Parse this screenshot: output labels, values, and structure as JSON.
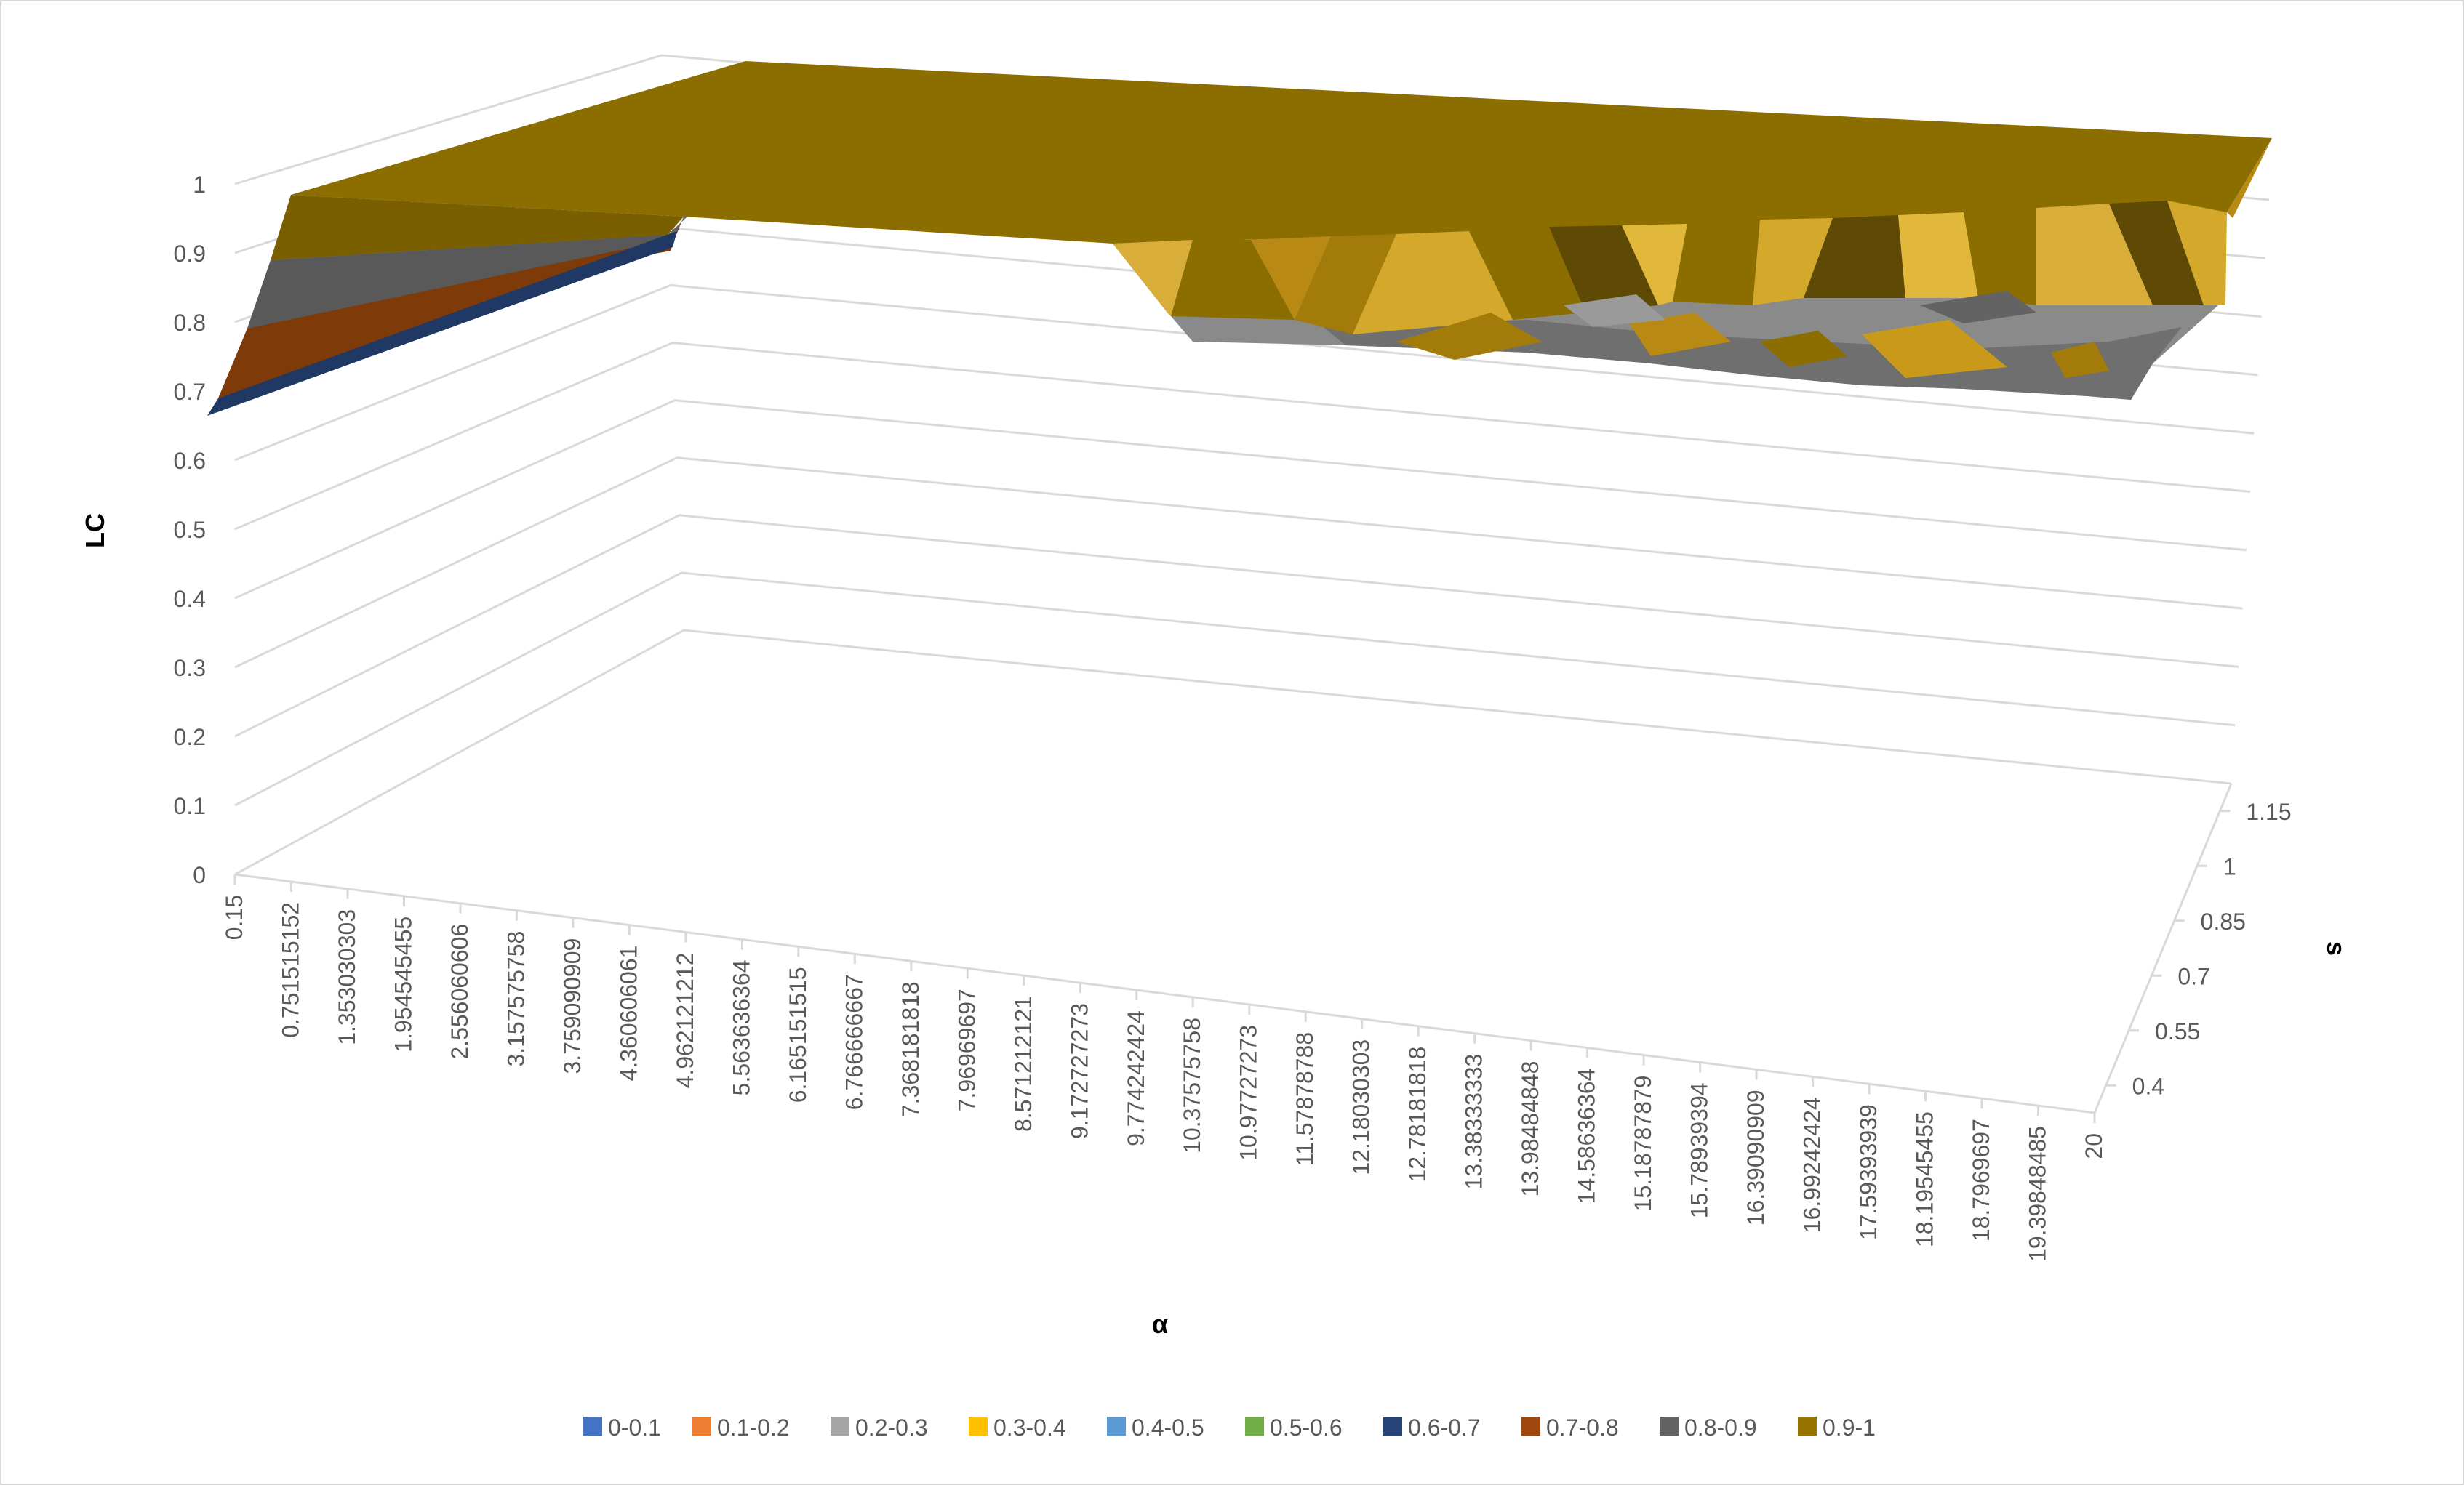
{
  "chart_data": {
    "type": "surface",
    "title": "",
    "z_axis": {
      "label": "LC",
      "ticks": [
        "0",
        "0.1",
        "0.2",
        "0.3",
        "0.4",
        "0.5",
        "0.6",
        "0.7",
        "0.8",
        "0.9",
        "1"
      ],
      "range": [
        0,
        1
      ]
    },
    "x_axis": {
      "label": "α",
      "ticks": [
        "0.15",
        "0.751515152",
        "1.353030303",
        "1.954545455",
        "2.556060606",
        "3.157575758",
        "3.759090909",
        "4.360606061",
        "4.962121212",
        "5.563636364",
        "6.165151515",
        "6.766666667",
        "7.368181818",
        "7.96969697",
        "8.571212121",
        "9.172727273",
        "9.774242424",
        "10.37575758",
        "10.97727273",
        "11.57878788",
        "12.18030303",
        "12.78181818",
        "13.38333333",
        "13.98484848",
        "14.58636364",
        "15.18787879",
        "15.78939394",
        "16.39090909",
        "16.99242424",
        "17.59393939",
        "18.19545455",
        "18.7969697",
        "19.39848485",
        "20"
      ],
      "range": [
        0.15,
        20
      ]
    },
    "y_axis": {
      "label": "s",
      "ticks": [
        "0.4",
        "0.55",
        "0.7",
        "0.85",
        "1",
        "1.15"
      ],
      "range": [
        0.4,
        1.15
      ]
    },
    "surface_description": {
      "plateau_value": 1.0,
      "front_edge_min_value_near_alpha_0": 0.7,
      "dip_region_alpha_start": 10.4,
      "dip_region_min_value": 0.8
    },
    "legend": {
      "position": "bottom",
      "entries": [
        {
          "label": "0-0.1",
          "color": "#4472c4"
        },
        {
          "label": "0.1-0.2",
          "color": "#ed7d31"
        },
        {
          "label": "0.2-0.3",
          "color": "#a5a5a5"
        },
        {
          "label": "0.3-0.4",
          "color": "#ffc000"
        },
        {
          "label": "0.4-0.5",
          "color": "#5b9bd5"
        },
        {
          "label": "0.5-0.6",
          "color": "#70ad47"
        },
        {
          "label": "0.6-0.7",
          "color": "#264478"
        },
        {
          "label": "0.7-0.8",
          "color": "#9e480e"
        },
        {
          "label": "0.8-0.9",
          "color": "#636363"
        },
        {
          "label": "0.9-1",
          "color": "#997300"
        }
      ]
    },
    "grid": true,
    "colors": {
      "plateau": "#8c6d00",
      "facet_light": "#d4a82a",
      "facet_dark": "#5e4a05",
      "dip_gray": "#8a8a8a",
      "gridline": "#d9d9d9",
      "tick_text": "#595959"
    }
  }
}
